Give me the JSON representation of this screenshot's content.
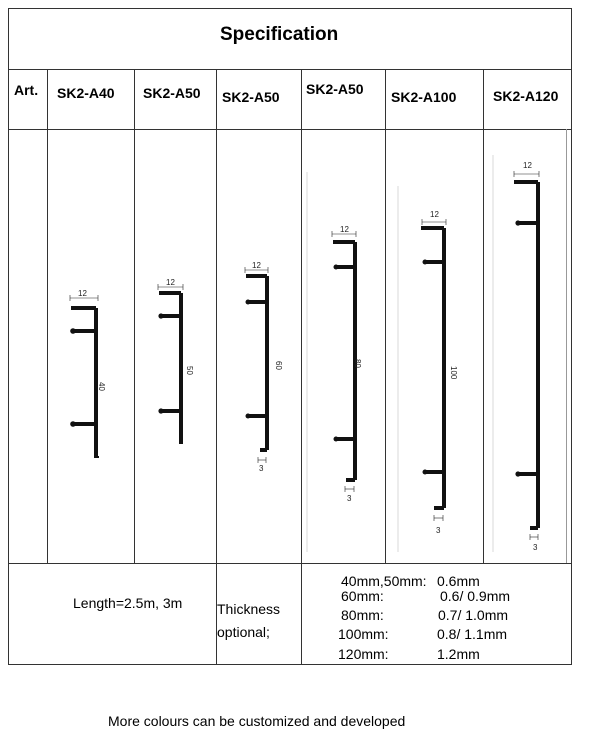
{
  "title": "Specification",
  "header": {
    "art": "Art.",
    "models": [
      "SK2-A40",
      "SK2-A50",
      "SK2-A50",
      "SK2-A50",
      "SK2-A100",
      "SK2-A120"
    ]
  },
  "profiles": [
    {
      "top_dim": "12",
      "height_dim": "40"
    },
    {
      "top_dim": "12",
      "height_dim": "50"
    },
    {
      "top_dim": "12",
      "height_dim": "60",
      "bottom_dim": "3"
    },
    {
      "top_dim": "12",
      "height_dim": "80",
      "bottom_dim": "3"
    },
    {
      "top_dim": "12",
      "height_dim": "100",
      "bottom_dim": "3"
    },
    {
      "top_dim": "12",
      "bottom_dim": "3"
    }
  ],
  "specs": {
    "length": "Length=2.5m, 3m",
    "thickness_line1": "Thickness",
    "thickness_line2": "optional;",
    "thickness_rows": [
      {
        "size": "40mm,50mm:",
        "value": "0.6mm"
      },
      {
        "size": "60mm:",
        "value": "0.6/ 0.9mm"
      },
      {
        "size": "80mm:",
        "value": "0.7/ 1.0mm"
      },
      {
        "size": "100mm:",
        "value": "0.8/ 1.1mm"
      },
      {
        "size": "120mm:",
        "value": "1.2mm"
      }
    ]
  },
  "footer": "More colours can be customized and developed"
}
